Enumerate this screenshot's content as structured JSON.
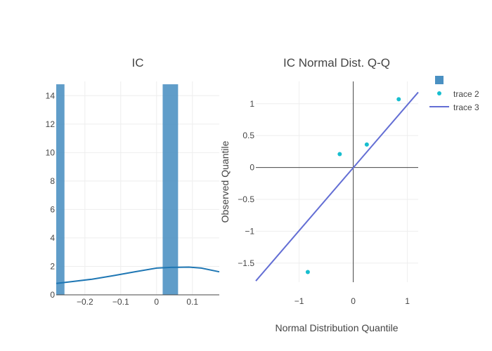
{
  "chart_data": [
    {
      "type": "bar",
      "title": "IC",
      "xlabel": "",
      "ylabel": "",
      "xlim": [
        -0.28,
        0.175
      ],
      "ylim": [
        0,
        15
      ],
      "x_ticks": [
        -0.2,
        -0.1,
        0,
        0.1
      ],
      "x_tick_labels": [
        "−0.2",
        "−0.1",
        "0",
        "0.1"
      ],
      "y_ticks": [
        0,
        2,
        4,
        6,
        8,
        10,
        12,
        14
      ],
      "y_tick_labels": [
        "0",
        "2",
        "4",
        "6",
        "8",
        "10",
        "12",
        "14"
      ],
      "grid": true,
      "bars": [
        {
          "x0": -0.28,
          "x1": -0.257,
          "value": 14.8
        },
        {
          "x0": 0.017,
          "x1": 0.06,
          "value": 14.8
        }
      ],
      "bar_color": "#4a90c2",
      "kde_line": {
        "x": [
          -0.28,
          -0.24,
          -0.18,
          -0.12,
          -0.06,
          0.0,
          0.04,
          0.09,
          0.125,
          0.175
        ],
        "y": [
          0.8,
          0.92,
          1.1,
          1.35,
          1.62,
          1.88,
          1.93,
          1.95,
          1.88,
          1.62
        ],
        "color": "#1f77b4"
      }
    },
    {
      "type": "scatter",
      "title": "IC Normal Dist. Q-Q",
      "xlabel": "Normal Distribution Quantile",
      "ylabel": "Observed Quantile",
      "xlim": [
        -1.8,
        1.2
      ],
      "ylim": [
        -1.8,
        1.35
      ],
      "x_ticks": [
        -1,
        0,
        1
      ],
      "x_tick_labels": [
        "−1",
        "0",
        "1"
      ],
      "y_ticks": [
        -1.5,
        -1,
        -0.5,
        0,
        0.5,
        1
      ],
      "y_tick_labels": [
        "−1.5",
        "−1",
        "−0.5",
        "0",
        "0.5",
        "1"
      ],
      "grid": true,
      "zero_lines": true,
      "series": [
        {
          "name": "trace 2",
          "mode": "markers",
          "x": [
            -0.84,
            -0.25,
            0.25,
            0.84
          ],
          "y": [
            -1.64,
            0.21,
            0.36,
            1.07
          ],
          "color": "#17becf"
        },
        {
          "name": "trace 3",
          "mode": "line",
          "x": [
            -1.8,
            1.2
          ],
          "y": [
            -1.78,
            1.18
          ],
          "color": "#636ed4"
        }
      ]
    }
  ],
  "legend": {
    "placement": "top-right",
    "items": [
      {
        "label": "",
        "kind": "bar",
        "color": "#4a90c2"
      },
      {
        "label": "trace 2",
        "kind": "marker",
        "color": "#17becf"
      },
      {
        "label": "trace 3",
        "kind": "line",
        "color": "#636ed4"
      }
    ]
  }
}
